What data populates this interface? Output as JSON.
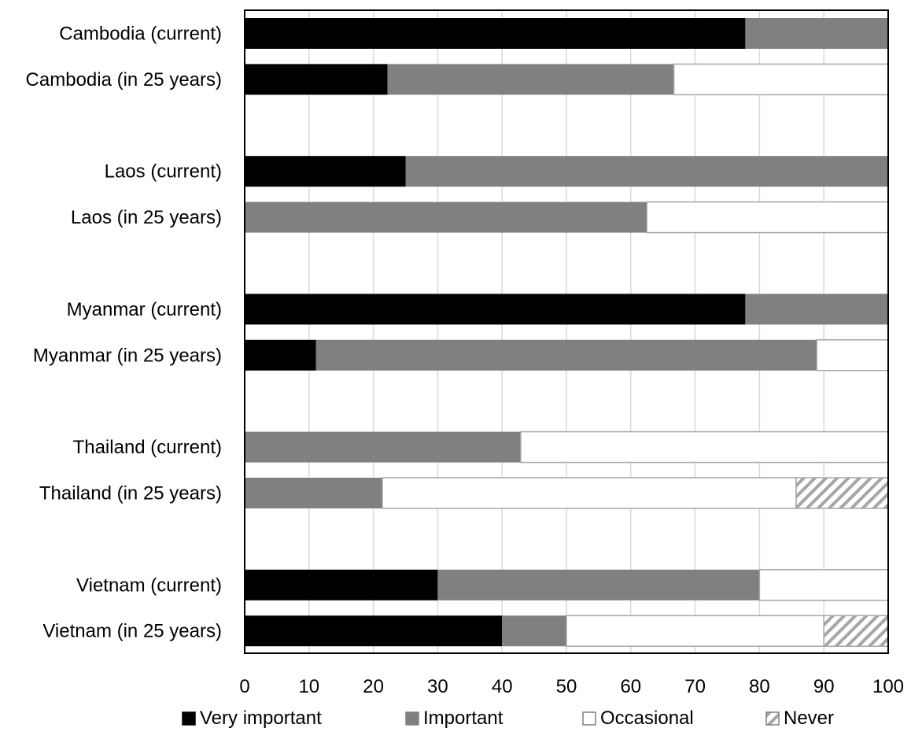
{
  "chart_data": {
    "type": "bar",
    "orientation": "horizontal",
    "stacked": true,
    "categories": [
      "Cambodia (current)",
      "Cambodia (in 25 years)",
      "",
      "Laos (current)",
      "Laos (in 25 years)",
      "",
      "Myanmar (current)",
      "Myanmar (in 25 years)",
      "",
      "Thailand (current)",
      "Thailand (in 25 years)",
      "",
      "Vietnam (current)",
      "Vietnam (in 25 years)"
    ],
    "series": [
      {
        "name": "Very important",
        "color": "#000000",
        "pattern": "solid",
        "values": [
          77.8,
          22.2,
          0,
          25.0,
          0,
          0,
          77.8,
          11.1,
          0,
          0,
          0,
          0,
          30.0,
          40.0
        ]
      },
      {
        "name": "Important",
        "color": "#808080",
        "pattern": "solid",
        "values": [
          22.2,
          44.5,
          0,
          75.0,
          62.5,
          0,
          22.2,
          77.8,
          0,
          42.9,
          21.4,
          0,
          50.0,
          10.0
        ]
      },
      {
        "name": "Occasional",
        "color": "#ffffff",
        "pattern": "solid",
        "values": [
          0,
          33.3,
          0,
          0,
          37.5,
          0,
          0,
          11.1,
          0,
          57.1,
          64.3,
          0,
          20.0,
          40.0
        ]
      },
      {
        "name": "Never",
        "color": "#a6a6a6",
        "pattern": "hatch",
        "values": [
          0,
          0,
          0,
          0,
          0,
          0,
          0,
          0,
          0,
          0,
          14.3,
          0,
          0,
          10.0
        ]
      }
    ],
    "xlim": [
      0,
      100
    ],
    "x_ticks": [
      "0",
      "10",
      "20",
      "30",
      "40",
      "50",
      "60",
      "70",
      "80",
      "90",
      "100"
    ],
    "grid": "vertical",
    "legend_position": "bottom",
    "title": "",
    "xlabel": "",
    "ylabel": ""
  }
}
